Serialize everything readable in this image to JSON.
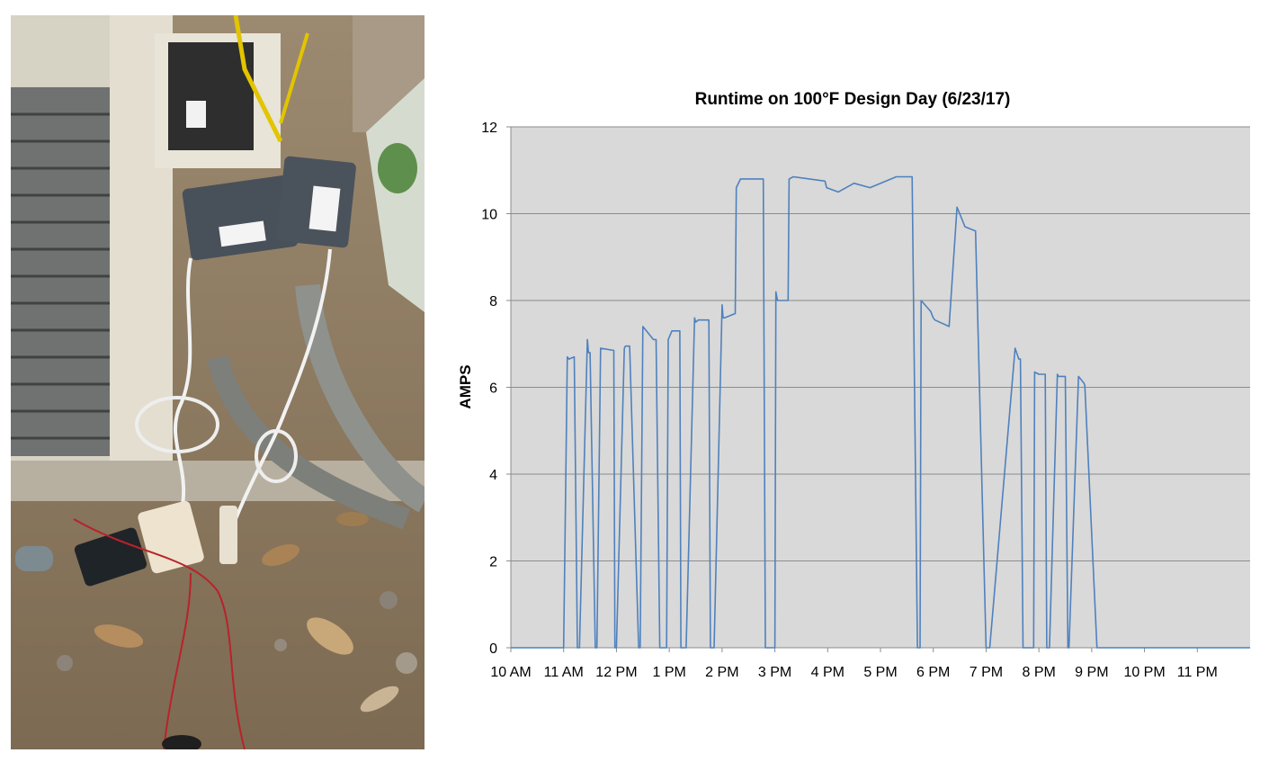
{
  "chart_data": {
    "type": "line",
    "title": "Runtime on 100°F Design Day (6/23/17)",
    "xlabel": "",
    "ylabel": "AMPS",
    "ylim": [
      0,
      12
    ],
    "y_ticks": [
      0,
      2,
      4,
      6,
      8,
      10,
      12
    ],
    "x_ticks": [
      "10 AM",
      "11 AM",
      "12 PM",
      "1 PM",
      "2 PM",
      "3 PM",
      "4 PM",
      "5 PM",
      "6 PM",
      "7 PM",
      "8 PM",
      "9 PM",
      "10 PM",
      "11 PM"
    ],
    "x_unit": "hour of day",
    "xlim": [
      10,
      24
    ],
    "grid": "horizontal",
    "plot_background": "#d9d9d9",
    "line_color": "#4f81bd",
    "series": [
      {
        "x": [
          10.0,
          11.0,
          11.07,
          11.1,
          11.2,
          11.26,
          11.3,
          11.45,
          11.47,
          11.5,
          11.6,
          11.63,
          11.7,
          11.95,
          11.97,
          12.0,
          12.15,
          12.17,
          12.25,
          12.42,
          12.45,
          12.5,
          12.7,
          12.75,
          12.82,
          12.95,
          12.98,
          13.05,
          13.2,
          13.22,
          13.32,
          13.48,
          13.5,
          13.55,
          13.75,
          13.78,
          13.85,
          14.0,
          14.02,
          14.05,
          14.25,
          14.27,
          14.35,
          14.75,
          14.78,
          14.82,
          15.0,
          15.02,
          15.05,
          15.25,
          15.27,
          15.35,
          15.95,
          15.98,
          16.2,
          16.5,
          16.8,
          17.3,
          17.6,
          17.7,
          17.75,
          17.77,
          17.95,
          18.0,
          18.03,
          18.3,
          18.45,
          18.5,
          18.55,
          18.6,
          18.8,
          19.0,
          19.05,
          19.07,
          19.55,
          19.62,
          19.65,
          19.7,
          19.9,
          19.92,
          20.0,
          20.12,
          20.15,
          20.2,
          20.35,
          20.37,
          20.5,
          20.55,
          20.57,
          20.75,
          20.85,
          20.87,
          21.1,
          21.15,
          21.17,
          21.28,
          21.35,
          24.0
        ],
        "y": [
          0,
          0,
          6.7,
          6.65,
          6.7,
          0,
          0,
          7.1,
          6.8,
          6.8,
          0,
          0,
          6.9,
          6.85,
          0,
          0,
          6.9,
          6.95,
          6.95,
          0,
          0,
          7.4,
          7.1,
          7.1,
          0,
          0,
          7.1,
          7.3,
          7.3,
          0,
          0,
          7.6,
          7.5,
          7.55,
          7.55,
          0,
          0,
          7.9,
          7.6,
          7.6,
          7.7,
          10.6,
          10.8,
          10.8,
          10.8,
          0,
          0,
          8.2,
          8.0,
          8.0,
          10.8,
          10.85,
          10.75,
          10.6,
          10.5,
          10.7,
          10.6,
          10.85,
          10.85,
          0,
          0,
          8.0,
          7.75,
          7.6,
          7.55,
          7.4,
          10.15,
          10.0,
          9.85,
          9.7,
          9.6,
          0,
          0,
          0,
          6.9,
          6.65,
          6.65,
          0,
          0,
          6.35,
          6.3,
          6.3,
          0,
          0,
          6.3,
          6.25,
          6.25,
          0,
          0,
          6.25,
          6.1,
          6.05,
          0,
          0,
          0,
          0,
          0,
          0
        ]
      }
    ]
  },
  "photo": {
    "description_icon": "hvac-current-sensor-photo-icon"
  }
}
